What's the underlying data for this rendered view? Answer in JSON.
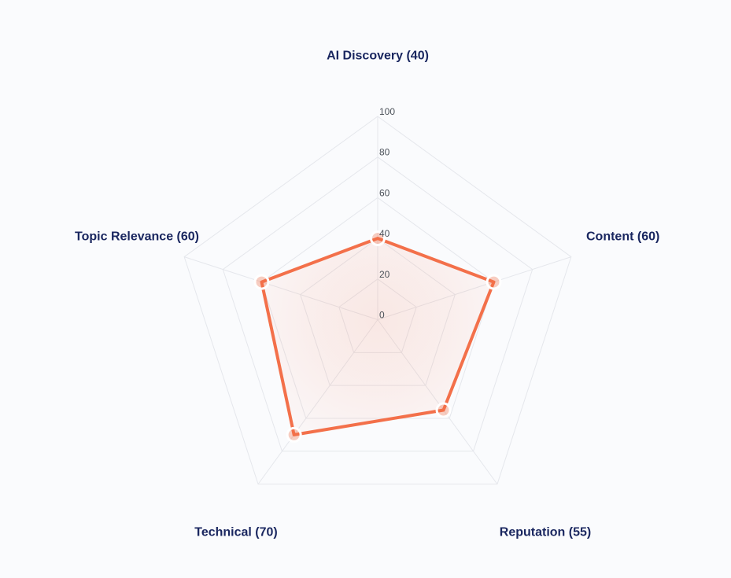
{
  "page": {
    "background": "#fafbfd"
  },
  "chart_data": {
    "type": "radar",
    "categories": [
      "AI Discovery",
      "Content",
      "Reputation",
      "Technical",
      "Topic Relevance"
    ],
    "values": [
      40,
      60,
      55,
      70,
      60
    ],
    "axis_labels": [
      "AI Discovery (40)",
      "Content (60)",
      "Reputation (55)",
      "Technical (70)",
      "Topic Relevance (60)"
    ],
    "scale_ticks": [
      0,
      20,
      40,
      60,
      80,
      100
    ],
    "max": 100,
    "grid": true,
    "legend": false,
    "title": "",
    "colors": {
      "series_stroke": "#f3704a",
      "fill_center": "rgba(244,113,75,0.14)",
      "fill_mid": "rgba(244,113,75,0.09)",
      "fill_edge": "rgba(244,113,75,0.03)",
      "marker_fill": "rgba(243,112,74,0.33)",
      "marker_ring": "#ffffff",
      "grid_line": "#e5e7ec",
      "tick_text": "#4b5159",
      "label_text": "#19265f"
    }
  }
}
